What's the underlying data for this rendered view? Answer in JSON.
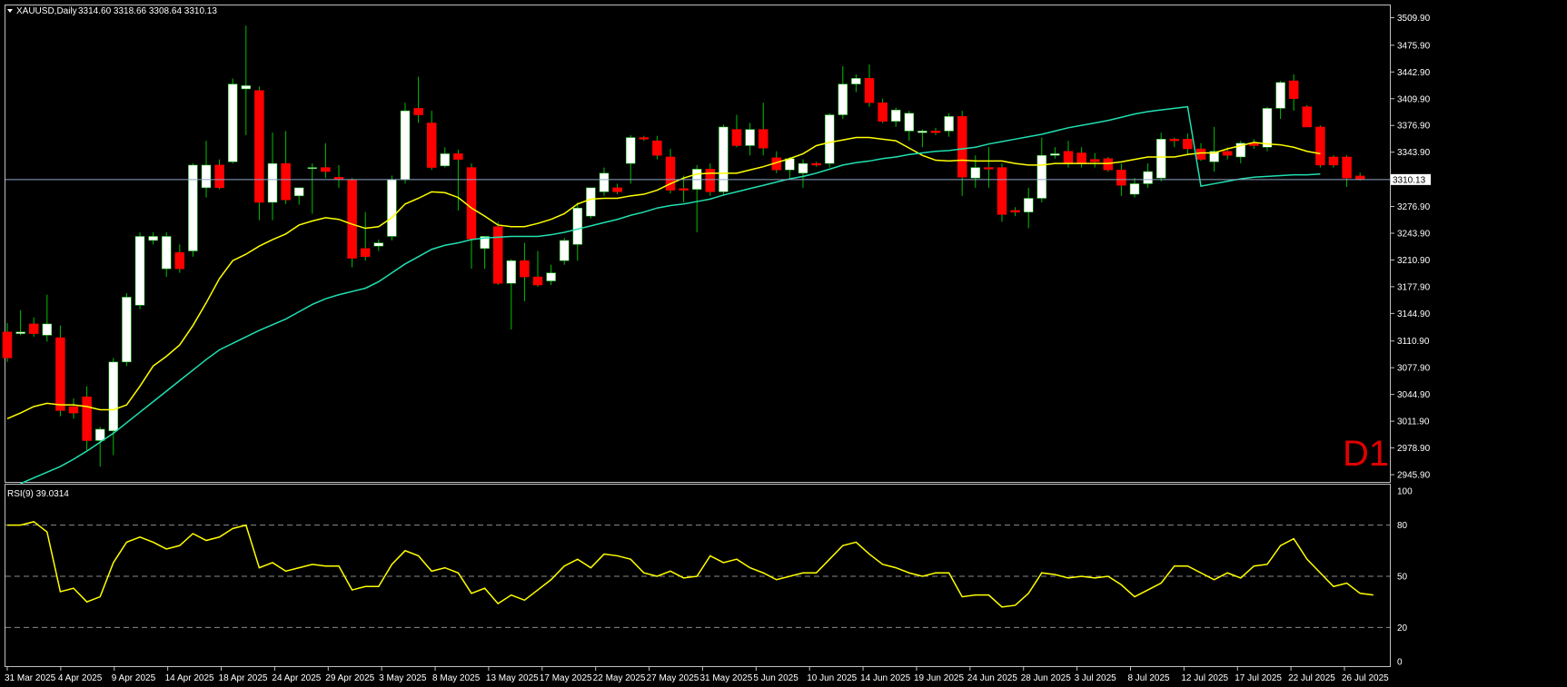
{
  "header": {
    "symbol": "XAUUSD,Daily",
    "ohlc": "3314.60 3318.66 3308.64 3310.13",
    "menu_icon": "triangle-down-icon"
  },
  "timeframe_label": "D1",
  "colors": {
    "background": "#000000",
    "frame": "#c0c0c0",
    "bull_body": "#ffffff",
    "bear_body": "#ff0000",
    "wick": "#00c000",
    "ma_fast": "#ffff00",
    "ma_slow": "#20e0b0",
    "rsi_line": "#ffff00",
    "bid_line": "#8fa7c8",
    "level_line": "#8a8a8a",
    "text": "#ffffff"
  },
  "price_axis": {
    "ticks": [
      "3509.90",
      "3475.90",
      "3442.90",
      "3409.90",
      "3376.90",
      "3343.90",
      "3310.13",
      "3276.90",
      "3243.90",
      "3210.90",
      "3177.90",
      "3144.90",
      "3110.90",
      "3077.90",
      "3044.90",
      "3011.90",
      "2978.90",
      "2945.90"
    ],
    "current_price": "3310.13"
  },
  "rsi": {
    "label": "RSI(9) 39.0314",
    "levels": [
      "100",
      "80",
      "50",
      "20",
      "0"
    ]
  },
  "date_axis": {
    "labels": [
      "31 Mar 2025",
      "4 Apr 2025",
      "9 Apr 2025",
      "14 Apr 2025",
      "18 Apr 2025",
      "24 Apr 2025",
      "29 Apr 2025",
      "3 May 2025",
      "8 May 2025",
      "13 May 2025",
      "17 May 2025",
      "22 May 2025",
      "27 May 2025",
      "31 May 2025",
      "5 Jun 2025",
      "10 Jun 2025",
      "14 Jun 2025",
      "19 Jun 2025",
      "24 Jun 2025",
      "28 Jun 2025",
      "3 Jul 2025",
      "8 Jul 2025",
      "12 Jul 2025",
      "17 Jul 2025",
      "22 Jul 2025",
      "26 Jul 2025"
    ]
  },
  "chart_data": {
    "type": "candlestick",
    "symbol": "XAUUSD",
    "timeframe": "Daily",
    "price_range": [
      2937,
      3525
    ],
    "candles": [
      {
        "o": 3122,
        "h": 3133,
        "l": 3085,
        "c": 3090
      },
      {
        "o": 3120,
        "h": 3149,
        "l": 3118,
        "c": 3122
      },
      {
        "o": 3132,
        "h": 3140,
        "l": 3116,
        "c": 3120
      },
      {
        "o": 3118,
        "h": 3168,
        "l": 3110,
        "c": 3132
      },
      {
        "o": 3115,
        "h": 3130,
        "l": 3018,
        "c": 3025
      },
      {
        "o": 3030,
        "h": 3040,
        "l": 3015,
        "c": 3022
      },
      {
        "o": 3042,
        "h": 3055,
        "l": 2976,
        "c": 2988
      },
      {
        "o": 2988,
        "h": 3005,
        "l": 2956,
        "c": 3002
      },
      {
        "o": 3000,
        "h": 3090,
        "l": 2970,
        "c": 3085
      },
      {
        "o": 3085,
        "h": 3170,
        "l": 3080,
        "c": 3165
      },
      {
        "o": 3155,
        "h": 3245,
        "l": 3150,
        "c": 3240
      },
      {
        "o": 3235,
        "h": 3245,
        "l": 3230,
        "c": 3240
      },
      {
        "o": 3200,
        "h": 3245,
        "l": 3190,
        "c": 3240
      },
      {
        "o": 3220,
        "h": 3230,
        "l": 3195,
        "c": 3200
      },
      {
        "o": 3222,
        "h": 3330,
        "l": 3215,
        "c": 3328
      },
      {
        "o": 3300,
        "h": 3358,
        "l": 3288,
        "c": 3328
      },
      {
        "o": 3328,
        "h": 3335,
        "l": 3298,
        "c": 3300
      },
      {
        "o": 3332,
        "h": 3435,
        "l": 3330,
        "c": 3428
      },
      {
        "o": 3422,
        "h": 3500,
        "l": 3365,
        "c": 3426
      },
      {
        "o": 3420,
        "h": 3425,
        "l": 3260,
        "c": 3282
      },
      {
        "o": 3282,
        "h": 3368,
        "l": 3260,
        "c": 3330
      },
      {
        "o": 3330,
        "h": 3370,
        "l": 3280,
        "c": 3285
      },
      {
        "o": 3290,
        "h": 3295,
        "l": 3279,
        "c": 3300
      },
      {
        "o": 3325,
        "h": 3330,
        "l": 3268,
        "c": 3325
      },
      {
        "o": 3325,
        "h": 3355,
        "l": 3312,
        "c": 3320
      },
      {
        "o": 3313,
        "h": 3328,
        "l": 3300,
        "c": 3310
      },
      {
        "o": 3310,
        "h": 3312,
        "l": 3202,
        "c": 3213
      },
      {
        "o": 3225,
        "h": 3270,
        "l": 3210,
        "c": 3215
      },
      {
        "o": 3228,
        "h": 3236,
        "l": 3222,
        "c": 3232
      },
      {
        "o": 3240,
        "h": 3315,
        "l": 3235,
        "c": 3310
      },
      {
        "o": 3310,
        "h": 3405,
        "l": 3305,
        "c": 3395
      },
      {
        "o": 3398,
        "h": 3437,
        "l": 3380,
        "c": 3390
      },
      {
        "o": 3380,
        "h": 3395,
        "l": 3322,
        "c": 3325
      },
      {
        "o": 3327,
        "h": 3350,
        "l": 3325,
        "c": 3342
      },
      {
        "o": 3342,
        "h": 3347,
        "l": 3272,
        "c": 3335
      },
      {
        "o": 3325,
        "h": 3330,
        "l": 3200,
        "c": 3237
      },
      {
        "o": 3225,
        "h": 3240,
        "l": 3200,
        "c": 3240
      },
      {
        "o": 3252,
        "h": 3258,
        "l": 3180,
        "c": 3182
      },
      {
        "o": 3182,
        "h": 3212,
        "l": 3125,
        "c": 3210
      },
      {
        "o": 3210,
        "h": 3232,
        "l": 3160,
        "c": 3190
      },
      {
        "o": 3190,
        "h": 3222,
        "l": 3178,
        "c": 3180
      },
      {
        "o": 3185,
        "h": 3205,
        "l": 3180,
        "c": 3195
      },
      {
        "o": 3210,
        "h": 3238,
        "l": 3205,
        "c": 3235
      },
      {
        "o": 3230,
        "h": 3282,
        "l": 3210,
        "c": 3275
      },
      {
        "o": 3265,
        "h": 3300,
        "l": 3262,
        "c": 3300
      },
      {
        "o": 3295,
        "h": 3325,
        "l": 3290,
        "c": 3318
      },
      {
        "o": 3300,
        "h": 3305,
        "l": 3292,
        "c": 3295
      },
      {
        "o": 3330,
        "h": 3365,
        "l": 3305,
        "c": 3362
      },
      {
        "o": 3362,
        "h": 3364,
        "l": 3358,
        "c": 3360
      },
      {
        "o": 3358,
        "h": 3364,
        "l": 3335,
        "c": 3340
      },
      {
        "o": 3338,
        "h": 3348,
        "l": 3293,
        "c": 3297
      },
      {
        "o": 3299,
        "h": 3315,
        "l": 3282,
        "c": 3297
      },
      {
        "o": 3298,
        "h": 3328,
        "l": 3245,
        "c": 3323
      },
      {
        "o": 3323,
        "h": 3330,
        "l": 3290,
        "c": 3295
      },
      {
        "o": 3295,
        "h": 3378,
        "l": 3290,
        "c": 3375
      },
      {
        "o": 3372,
        "h": 3390,
        "l": 3350,
        "c": 3352
      },
      {
        "o": 3352,
        "h": 3380,
        "l": 3340,
        "c": 3372
      },
      {
        "o": 3372,
        "h": 3405,
        "l": 3340,
        "c": 3349
      },
      {
        "o": 3337,
        "h": 3345,
        "l": 3318,
        "c": 3322
      },
      {
        "o": 3322,
        "h": 3338,
        "l": 3312,
        "c": 3336
      },
      {
        "o": 3318,
        "h": 3335,
        "l": 3300,
        "c": 3330
      },
      {
        "o": 3330,
        "h": 3332,
        "l": 3326,
        "c": 3328
      },
      {
        "o": 3330,
        "h": 3392,
        "l": 3325,
        "c": 3390
      },
      {
        "o": 3390,
        "h": 3450,
        "l": 3385,
        "c": 3428
      },
      {
        "o": 3428,
        "h": 3440,
        "l": 3418,
        "c": 3435
      },
      {
        "o": 3435,
        "h": 3452,
        "l": 3400,
        "c": 3405
      },
      {
        "o": 3405,
        "h": 3410,
        "l": 3380,
        "c": 3382
      },
      {
        "o": 3382,
        "h": 3399,
        "l": 3375,
        "c": 3396
      },
      {
        "o": 3370,
        "h": 3395,
        "l": 3358,
        "c": 3392
      },
      {
        "o": 3368,
        "h": 3372,
        "l": 3350,
        "c": 3370
      },
      {
        "o": 3370,
        "h": 3374,
        "l": 3365,
        "c": 3368
      },
      {
        "o": 3370,
        "h": 3392,
        "l": 3363,
        "c": 3388
      },
      {
        "o": 3388,
        "h": 3395,
        "l": 3290,
        "c": 3313
      },
      {
        "o": 3312,
        "h": 3340,
        "l": 3300,
        "c": 3325
      },
      {
        "o": 3325,
        "h": 3350,
        "l": 3300,
        "c": 3323
      },
      {
        "o": 3325,
        "h": 3330,
        "l": 3258,
        "c": 3267
      },
      {
        "o": 3272,
        "h": 3276,
        "l": 3265,
        "c": 3270
      },
      {
        "o": 3270,
        "h": 3300,
        "l": 3250,
        "c": 3287
      },
      {
        "o": 3287,
        "h": 3362,
        "l": 3282,
        "c": 3340
      },
      {
        "o": 3340,
        "h": 3350,
        "l": 3336,
        "c": 3342
      },
      {
        "o": 3345,
        "h": 3358,
        "l": 3325,
        "c": 3330
      },
      {
        "o": 3343,
        "h": 3350,
        "l": 3325,
        "c": 3331
      },
      {
        "o": 3335,
        "h": 3343,
        "l": 3325,
        "c": 3332
      },
      {
        "o": 3336,
        "h": 3338,
        "l": 3320,
        "c": 3322
      },
      {
        "o": 3322,
        "h": 3330,
        "l": 3290,
        "c": 3303
      },
      {
        "o": 3292,
        "h": 3312,
        "l": 3288,
        "c": 3305
      },
      {
        "o": 3305,
        "h": 3330,
        "l": 3300,
        "c": 3320
      },
      {
        "o": 3312,
        "h": 3368,
        "l": 3308,
        "c": 3360
      },
      {
        "o": 3360,
        "h": 3362,
        "l": 3350,
        "c": 3358
      },
      {
        "o": 3360,
        "h": 3367,
        "l": 3340,
        "c": 3348
      },
      {
        "o": 3348,
        "h": 3355,
        "l": 3333,
        "c": 3335
      },
      {
        "o": 3332,
        "h": 3375,
        "l": 3320,
        "c": 3345
      },
      {
        "o": 3345,
        "h": 3350,
        "l": 3335,
        "c": 3340
      },
      {
        "o": 3338,
        "h": 3358,
        "l": 3330,
        "c": 3355
      },
      {
        "o": 3355,
        "h": 3360,
        "l": 3348,
        "c": 3352
      },
      {
        "o": 3350,
        "h": 3400,
        "l": 3345,
        "c": 3398
      },
      {
        "o": 3398,
        "h": 3432,
        "l": 3385,
        "c": 3430
      },
      {
        "o": 3432,
        "h": 3440,
        "l": 3395,
        "c": 3410
      },
      {
        "o": 3400,
        "h": 3402,
        "l": 3375,
        "c": 3375
      },
      {
        "o": 3375,
        "h": 3377,
        "l": 3325,
        "c": 3328
      },
      {
        "o": 3338,
        "h": 3340,
        "l": 3325,
        "c": 3328
      },
      {
        "o": 3338,
        "h": 3340,
        "l": 3301,
        "c": 3312
      },
      {
        "o": 3314.6,
        "h": 3318.66,
        "l": 3308.64,
        "c": 3310.13
      }
    ],
    "ma_fast": [
      3015,
      3022,
      3030,
      3034,
      3032,
      3032,
      3030,
      3026,
      3026,
      3032,
      3055,
      3080,
      3092,
      3106,
      3130,
      3158,
      3188,
      3210,
      3218,
      3228,
      3236,
      3243,
      3254,
      3259,
      3263,
      3261,
      3255,
      3250,
      3252,
      3263,
      3280,
      3287,
      3295,
      3294,
      3288,
      3275,
      3265,
      3254,
      3252,
      3252,
      3256,
      3261,
      3268,
      3280,
      3286,
      3287,
      3287,
      3290,
      3292,
      3297,
      3305,
      3312,
      3317,
      3318,
      3318,
      3318,
      3322,
      3326,
      3331,
      3336,
      3342,
      3352,
      3356,
      3359,
      3362,
      3362,
      3360,
      3358,
      3349,
      3340,
      3334,
      3333,
      3334,
      3333,
      3333,
      3333,
      3330,
      3328,
      3328,
      3330,
      3330,
      3330,
      3330,
      3330,
      3332,
      3335,
      3338,
      3338,
      3338,
      3341,
      3343,
      3343,
      3348,
      3352,
      3356,
      3354,
      3353,
      3350,
      3345,
      3342
    ],
    "ma_slow": [
      2930,
      2935,
      2942,
      2949,
      2956,
      2965,
      2975,
      2986,
      2997,
      3010,
      3023,
      3036,
      3049,
      3062,
      3075,
      3088,
      3100,
      3108,
      3116,
      3124,
      3131,
      3138,
      3147,
      3156,
      3163,
      3168,
      3172,
      3176,
      3184,
      3195,
      3206,
      3215,
      3224,
      3229,
      3232,
      3236,
      3238,
      3239,
      3240,
      3240,
      3240,
      3242,
      3245,
      3249,
      3253,
      3257,
      3261,
      3266,
      3270,
      3275,
      3278,
      3280,
      3283,
      3286,
      3291,
      3295,
      3299,
      3303,
      3307,
      3311,
      3314,
      3318,
      3323,
      3328,
      3331,
      3333,
      3336,
      3338,
      3341,
      3343,
      3345,
      3346,
      3348,
      3350,
      3354,
      3357,
      3360,
      3363,
      3366,
      3370,
      3374,
      3377,
      3380,
      3383,
      3387,
      3391,
      3394,
      3396,
      3398,
      3400,
      3302,
      3305,
      3308,
      3311,
      3313,
      3314,
      3315,
      3316,
      3316,
      3317
    ],
    "rsi_values": [
      80,
      80,
      82,
      76,
      41,
      43,
      35,
      38,
      58,
      70,
      73,
      70,
      66,
      68,
      75,
      71,
      73,
      78,
      80,
      55,
      58,
      53,
      55,
      57,
      56,
      56,
      42,
      44,
      44,
      57,
      65,
      62,
      53,
      55,
      52,
      40,
      43,
      34,
      39,
      36,
      42,
      48,
      56,
      60,
      55,
      63,
      62,
      60,
      52,
      50,
      53,
      49,
      50,
      62,
      58,
      60,
      55,
      52,
      48,
      50,
      52,
      52,
      60,
      68,
      70,
      63,
      57,
      55,
      52,
      50,
      52,
      52,
      38,
      39,
      39,
      32,
      33,
      40,
      52,
      51,
      49,
      50,
      49,
      50,
      45,
      38,
      42,
      46,
      56,
      56,
      52,
      48,
      52,
      49,
      56,
      57,
      68,
      72,
      60,
      52,
      44,
      46,
      40,
      39
    ],
    "rsi_range": [
      0,
      100
    ]
  }
}
